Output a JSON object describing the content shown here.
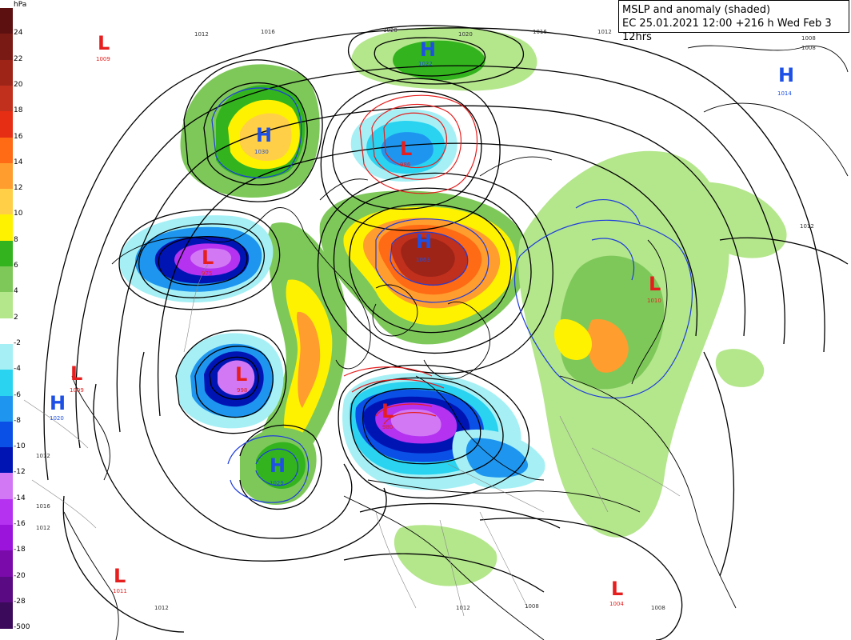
{
  "header": {
    "title": "MSLP and anomaly (shaded)",
    "run_info": "EC 25.01.2021 12:00 +216 h Wed Feb 3 12hrs"
  },
  "legend": {
    "unit": "hPa",
    "items": [
      {
        "label": "24",
        "color": "#5c1010"
      },
      {
        "label": "22",
        "color": "#7a1a14"
      },
      {
        "label": "20",
        "color": "#9e2418"
      },
      {
        "label": "18",
        "color": "#c0301c"
      },
      {
        "label": "16",
        "color": "#e62e14"
      },
      {
        "label": "14",
        "color": "#ff6a14"
      },
      {
        "label": "12",
        "color": "#ff9d2e"
      },
      {
        "label": "10",
        "color": "#ffcf48"
      },
      {
        "label": "8",
        "color": "#fff200"
      },
      {
        "label": "6",
        "color": "#33b41e"
      },
      {
        "label": "4",
        "color": "#7ec85a"
      },
      {
        "label": "2",
        "color": "#b4e68c"
      },
      {
        "label": "-2",
        "color": "#ffffff"
      },
      {
        "label": "-4",
        "color": "#a6f0f5"
      },
      {
        "label": "-6",
        "color": "#2ad3f0"
      },
      {
        "label": "-8",
        "color": "#1e96f0"
      },
      {
        "label": "-10",
        "color": "#0a50e6"
      },
      {
        "label": "-12",
        "color": "#0014b4"
      },
      {
        "label": "-14",
        "color": "#d278f5"
      },
      {
        "label": "-16",
        "color": "#b432f0"
      },
      {
        "label": "-18",
        "color": "#9a14dc"
      },
      {
        "label": "-20",
        "color": "#7a0aaa"
      },
      {
        "label": "-28",
        "color": "#5a0a82"
      },
      {
        "label": "-500",
        "color": "#3c0a5a"
      }
    ]
  },
  "centers": [
    {
      "type": "L",
      "value": "1009",
      "color": "#e61e1e"
    },
    {
      "type": "H",
      "value": "1022",
      "color": "#1e50e6"
    },
    {
      "type": "H",
      "value": "1030",
      "color": "#1e50e6"
    },
    {
      "type": "L",
      "value": "986",
      "color": "#e61e1e"
    },
    {
      "type": "H",
      "value": "1014",
      "color": "#1e50e6"
    },
    {
      "type": "L",
      "value": "975",
      "color": "#e61e1e"
    },
    {
      "type": "H",
      "value": "1063",
      "color": "#1e50e6"
    },
    {
      "type": "L",
      "value": "1010",
      "color": "#e61e1e"
    },
    {
      "type": "L",
      "value": "998",
      "color": "#e61e1e"
    },
    {
      "type": "L",
      "value": "1009",
      "color": "#e61e1e"
    },
    {
      "type": "H",
      "value": "1020",
      "color": "#1e50e6"
    },
    {
      "type": "L",
      "value": "980",
      "color": "#e61e1e"
    },
    {
      "type": "H",
      "value": "1029",
      "color": "#1e50e6"
    },
    {
      "type": "L",
      "value": "1011",
      "color": "#e61e1e"
    },
    {
      "type": "L",
      "value": "1004",
      "color": "#e61e1e"
    }
  ],
  "isobar_labels": [
    "1012",
    "1016",
    "1020",
    "1020",
    "1016",
    "1012",
    "1008",
    "1008",
    "1012",
    "1012",
    "1016",
    "1012",
    "1008",
    "1008",
    "1012",
    "1012"
  ],
  "colors": {
    "isobar": "#000000",
    "contour_blue": "#1e3cdc",
    "contour_red": "#e61e1e",
    "coast": "#000000",
    "border": "#888888"
  }
}
